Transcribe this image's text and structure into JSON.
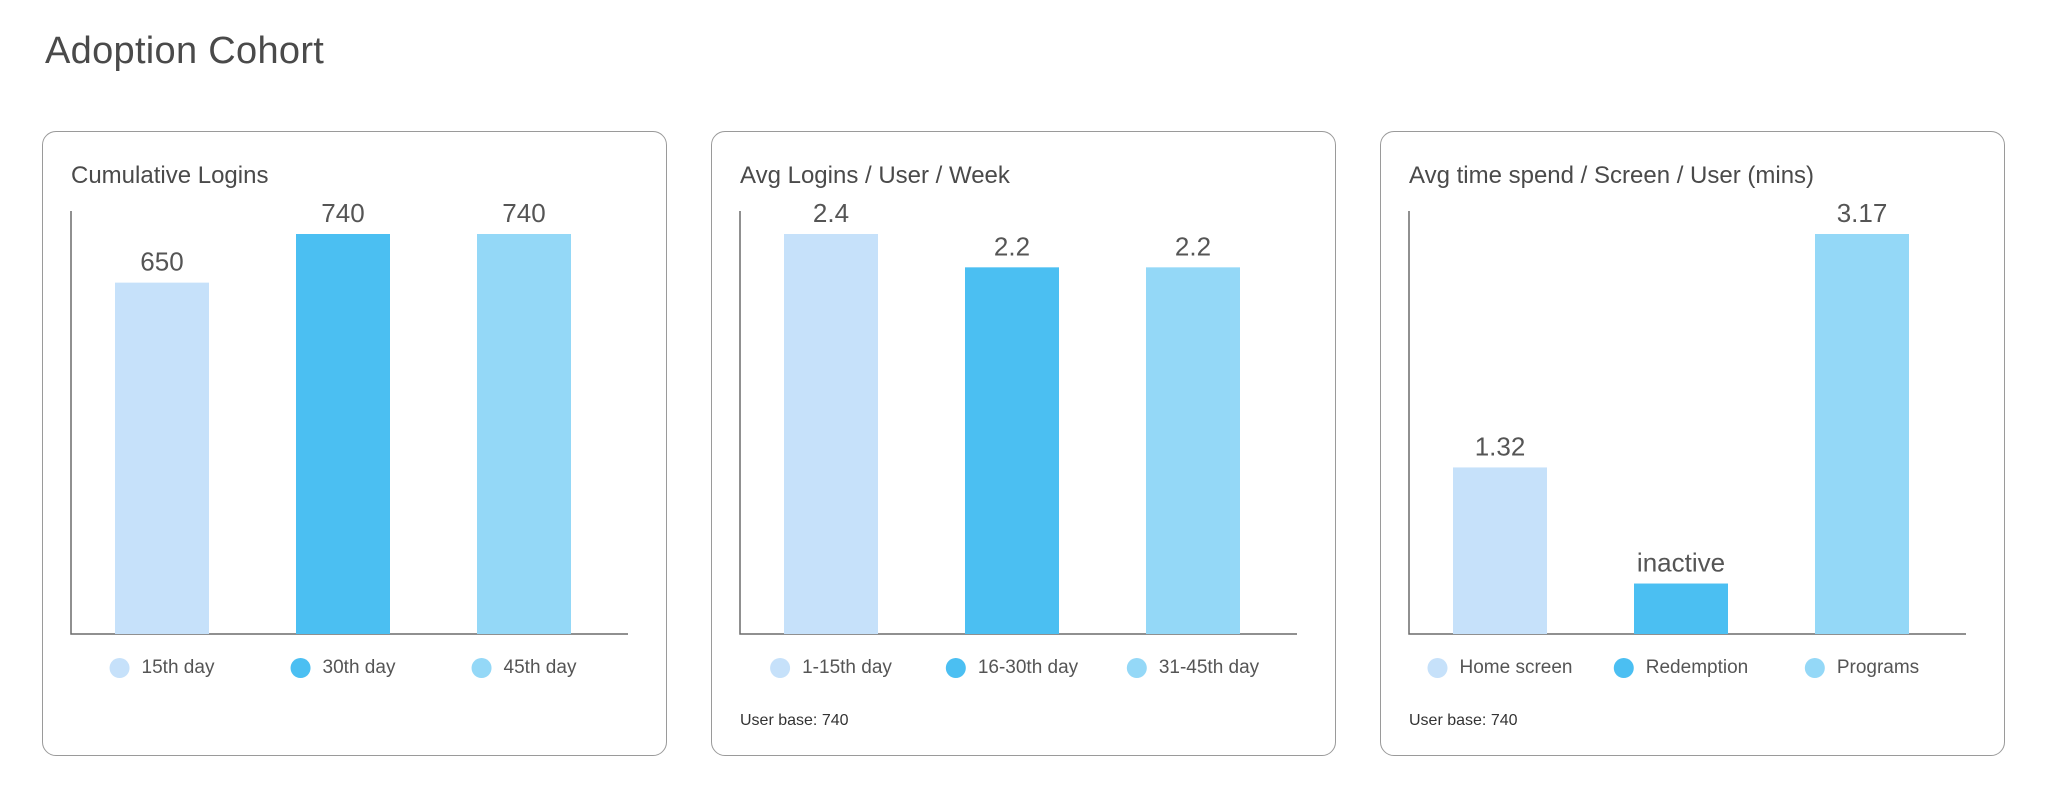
{
  "page": {
    "title": "Adoption Cohort"
  },
  "colors": {
    "light": "#c6e1fa",
    "dark": "#4bbff2",
    "medium": "#94d8f7",
    "axis": "#6b6b6b"
  },
  "chart_data": [
    {
      "type": "bar",
      "title": "Cumulative Logins",
      "categories": [
        "15th day",
        "30th day",
        "45th day"
      ],
      "values": [
        650,
        740,
        740
      ],
      "value_labels": [
        "650",
        "740",
        "740"
      ],
      "ylim": [
        0,
        740
      ],
      "footnote": ""
    },
    {
      "type": "bar",
      "title": "Avg Logins / User / Week",
      "categories": [
        "1-15th day",
        "16-30th day",
        "31-45th day"
      ],
      "values": [
        2.4,
        2.2,
        2.2
      ],
      "value_labels": [
        "2.4",
        "2.2",
        "2.2"
      ],
      "ylim": [
        0,
        2.4
      ],
      "footnote": "User base: 740"
    },
    {
      "type": "bar",
      "title": "Avg time spend / Screen / User (mins)",
      "categories": [
        "Home screen",
        "Redemption",
        "Programs"
      ],
      "values": [
        1.32,
        0.4,
        3.17
      ],
      "value_labels": [
        "1.32",
        "inactive",
        "3.17"
      ],
      "ylim": [
        0,
        3.17
      ],
      "footnote": "User base: 740"
    }
  ]
}
